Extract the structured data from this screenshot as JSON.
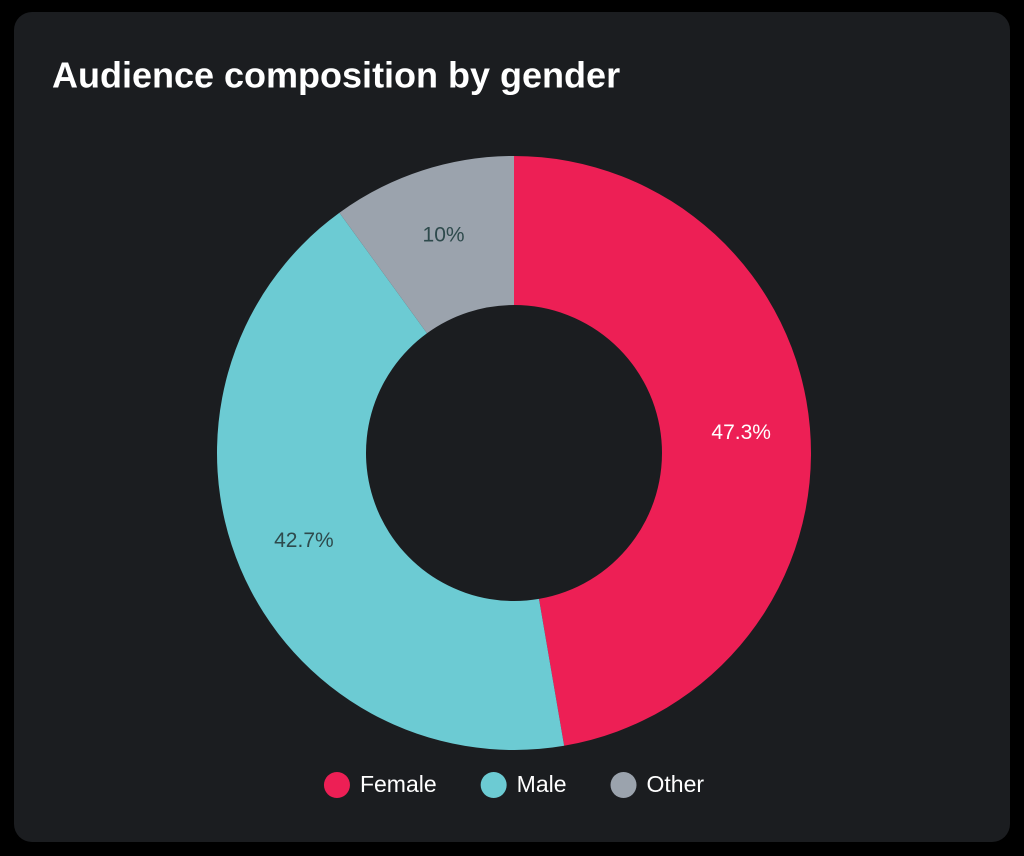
{
  "chart_data": {
    "type": "pie",
    "title": "Audience composition by gender",
    "categories": [
      "Female",
      "Male",
      "Other"
    ],
    "values": [
      47.3,
      42.7,
      10
    ],
    "value_labels": [
      "47.3%",
      "42.7%",
      "10%"
    ],
    "colors": [
      "#ed1f55",
      "#6ccbd3",
      "#9ba3ad"
    ],
    "label_colors": [
      "#ffffff",
      "#2e4a4c",
      "#2e4a4c"
    ],
    "legend": "bottom"
  }
}
